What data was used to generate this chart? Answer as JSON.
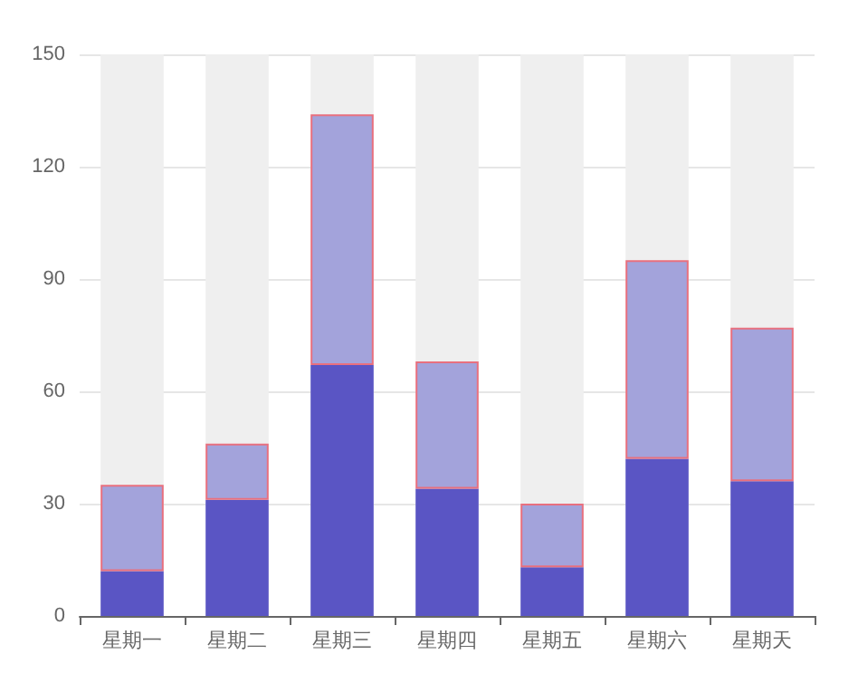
{
  "chart_data": {
    "type": "bar",
    "stacked": true,
    "categories": [
      "星期一",
      "星期二",
      "星期三",
      "星期四",
      "星期五",
      "星期六",
      "星期天"
    ],
    "series": [
      {
        "color": "#5a55c4",
        "values": [
          12,
          31,
          67,
          34,
          13,
          42,
          36
        ]
      },
      {
        "color": "#a3a3db",
        "values": [
          23,
          15,
          67,
          34,
          17,
          53,
          41
        ]
      }
    ],
    "ylim": [
      0,
      150
    ],
    "yticks": [
      0,
      30,
      60,
      90,
      120,
      150
    ],
    "grid": "y"
  }
}
